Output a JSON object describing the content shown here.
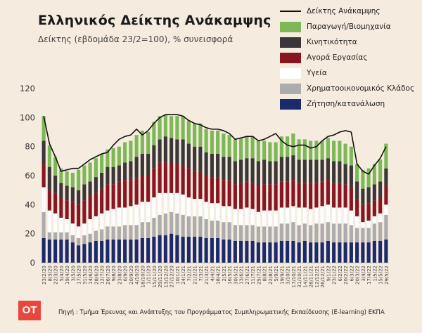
{
  "header": {
    "title": "Ελληνικός Δείκτης Ανάκαμψης",
    "subtitle": "Δείκτης (εβδομάδα 23/2=100), % συνεισφορά"
  },
  "footer": {
    "logo_text": "OT",
    "source": "Πηγή : Τμήμα Έρευνας και Ανάπτυξης του Προγράμματος Συμπληρωματικής Εκπαίδευσης (E-learning) ΕΚΠΑ"
  },
  "chart_data": {
    "type": "bar",
    "stacked": true,
    "ylim": [
      0,
      120
    ],
    "yticks": [
      "0",
      "20",
      "40",
      "60",
      "80",
      "100",
      "120"
    ],
    "xtick_labels": [
      "23/2/20",
      "8/3/20",
      "22/3/20",
      "5/4/20",
      "19/4/20",
      "3/5/20",
      "17/5/20",
      "31/5/20",
      "14/6/20",
      "28/6/20",
      "12/7/20",
      "26/7/20",
      "9/8/20",
      "23/8/20",
      "6/9/20",
      "20/9/20",
      "4/10/20",
      "18/10/20",
      "1/11/20",
      "15/11/20",
      "29/11/20",
      "13/12/20",
      "27/12/20",
      "10/1/21",
      "24/1/21",
      "7/2/21",
      "21/2/21",
      "7/3/21",
      "21/3/21",
      "4/4/21",
      "18/4/21",
      "2/5/21",
      "16/5/21",
      "30/5/21",
      "13/6/21",
      "27/6/21",
      "11/7/21",
      "25/7/21",
      "8/8/21",
      "22/8/21",
      "5/9/21",
      "19/9/21",
      "3/10/21",
      "17/10/21",
      "31/10/21",
      "14/11/21",
      "28/11/21",
      "12/12/21",
      "26/12/21",
      "9/1/22",
      "23/1/22",
      "6/2/22",
      "20/2/22",
      "6/3/22",
      "20/3/22",
      "3/4/22",
      "17/4/22",
      "1/5/22",
      "15/5/22",
      "29/5/22"
    ],
    "legend_line": "Δείκτης Ανάκαμψης",
    "series": [
      {
        "name": "Ζήτηση/κατανάλωση",
        "color": "#1b2a6b",
        "values": [
          17,
          16,
          16,
          16,
          16,
          14,
          12,
          13,
          14,
          15,
          15,
          16,
          16,
          16,
          16,
          16,
          16,
          17,
          17,
          18,
          19,
          19,
          20,
          19,
          18,
          18,
          18,
          18,
          17,
          17,
          17,
          16,
          16,
          15,
          15,
          15,
          15,
          14,
          14,
          14,
          14,
          15,
          15,
          15,
          14,
          15,
          14,
          14,
          14,
          15,
          14,
          14,
          14,
          14,
          14,
          14,
          14,
          15,
          15,
          16
        ]
      },
      {
        "name": "Χρηματοοικονομικός Κλάδος",
        "color": "#acacac",
        "values": [
          18,
          5,
          5,
          5,
          5,
          5,
          5,
          6,
          6,
          7,
          8,
          9,
          9,
          9,
          10,
          10,
          10,
          11,
          11,
          13,
          14,
          15,
          15,
          15,
          15,
          14,
          14,
          14,
          13,
          12,
          12,
          12,
          12,
          11,
          11,
          11,
          11,
          11,
          11,
          11,
          11,
          12,
          12,
          13,
          12,
          12,
          12,
          13,
          13,
          13,
          13,
          13,
          13,
          12,
          10,
          10,
          10,
          12,
          13,
          17
        ]
      },
      {
        "name": "Υγεία",
        "color": "#ffffff",
        "values": [
          17,
          15,
          13,
          10,
          9,
          8,
          8,
          8,
          10,
          10,
          11,
          11,
          12,
          13,
          12,
          13,
          14,
          14,
          14,
          14,
          15,
          14,
          13,
          14,
          14,
          13,
          12,
          12,
          12,
          12,
          12,
          11,
          11,
          11,
          11,
          12,
          11,
          10,
          11,
          11,
          11,
          11,
          11,
          11,
          12,
          11,
          11,
          11,
          12,
          12,
          11,
          11,
          11,
          10,
          8,
          4,
          5,
          5,
          6,
          7
        ]
      },
      {
        "name": "Αγορά Εργασίας",
        "color": "#8a1520",
        "values": [
          16,
          14,
          14,
          14,
          13,
          15,
          15,
          16,
          16,
          16,
          17,
          18,
          17,
          18,
          19,
          18,
          18,
          18,
          18,
          20,
          21,
          21,
          20,
          20,
          20,
          20,
          19,
          19,
          18,
          18,
          18,
          18,
          18,
          17,
          18,
          18,
          18,
          18,
          18,
          18,
          18,
          18,
          18,
          18,
          17,
          17,
          18,
          17,
          17,
          17,
          17,
          17,
          16,
          16,
          12,
          12,
          12,
          11,
          11,
          13
        ]
      },
      {
        "name": "Κινητικότητα",
        "color": "#3b3637",
        "values": [
          16,
          16,
          12,
          10,
          10,
          10,
          10,
          11,
          10,
          11,
          11,
          12,
          12,
          11,
          12,
          13,
          15,
          15,
          15,
          16,
          16,
          18,
          18,
          17,
          18,
          17,
          17,
          17,
          16,
          16,
          16,
          16,
          16,
          16,
          16,
          16,
          17,
          17,
          17,
          16,
          16,
          17,
          17,
          17,
          16,
          16,
          16,
          16,
          15,
          15,
          15,
          15,
          14,
          15,
          12,
          11,
          11,
          11,
          11,
          12
        ]
      },
      {
        "name": "Παραγωγή/Βιομηχανία",
        "color": "#7cb956",
        "values": [
          17,
          15,
          13,
          10,
          10,
          10,
          14,
          13,
          13,
          13,
          13,
          12,
          13,
          13,
          14,
          14,
          15,
          16,
          15,
          16,
          16,
          15,
          15,
          16,
          16,
          16,
          16,
          16,
          16,
          16,
          16,
          16,
          15,
          15,
          15,
          15,
          15,
          14,
          13,
          13,
          13,
          14,
          14,
          15,
          14,
          14,
          13,
          13,
          13,
          14,
          14,
          14,
          14,
          13,
          12,
          13,
          13,
          14,
          15,
          17
        ]
      }
    ],
    "index": [
      101,
      82,
      73,
      63,
      64,
      65,
      65,
      68,
      71,
      73,
      75,
      76,
      81,
      85,
      87,
      88,
      92,
      88,
      91,
      96,
      100,
      102,
      102,
      102,
      101,
      98,
      96,
      95,
      93,
      92,
      92,
      91,
      89,
      85,
      86,
      87,
      87,
      84,
      85,
      87,
      89,
      84,
      81,
      80,
      81,
      81,
      79,
      80,
      84,
      87,
      88,
      90,
      91,
      90,
      68,
      63,
      61,
      67,
      72,
      80
    ]
  }
}
